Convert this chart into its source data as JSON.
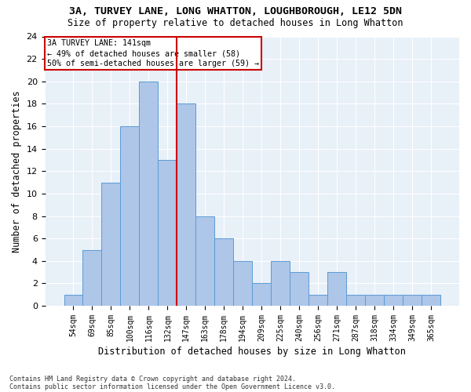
{
  "title1": "3A, TURVEY LANE, LONG WHATTON, LOUGHBOROUGH, LE12 5DN",
  "title2": "Size of property relative to detached houses in Long Whatton",
  "xlabel": "Distribution of detached houses by size in Long Whatton",
  "ylabel": "Number of detached properties",
  "footnote1": "Contains HM Land Registry data © Crown copyright and database right 2024.",
  "footnote2": "Contains public sector information licensed under the Open Government Licence v3.0.",
  "bin_labels": [
    "54sqm",
    "69sqm",
    "85sqm",
    "100sqm",
    "116sqm",
    "132sqm",
    "147sqm",
    "163sqm",
    "178sqm",
    "194sqm",
    "209sqm",
    "225sqm",
    "240sqm",
    "256sqm",
    "271sqm",
    "287sqm",
    "318sqm",
    "334sqm",
    "349sqm",
    "365sqm"
  ],
  "values": [
    1,
    5,
    11,
    16,
    20,
    13,
    18,
    8,
    6,
    4,
    2,
    4,
    3,
    1,
    3,
    1,
    1,
    1,
    1,
    1
  ],
  "bar_color": "#aec6e8",
  "bar_edge_color": "#5b9bd5",
  "background_color": "#e8f0f8",
  "grid_color": "#ffffff",
  "vline_color": "#cc0000",
  "annotation_text": "3A TURVEY LANE: 141sqm\n← 49% of detached houses are smaller (58)\n50% of semi-detached houses are larger (59) →",
  "annotation_box_color": "#cc0000",
  "ylim": [
    0,
    24
  ],
  "yticks": [
    0,
    2,
    4,
    6,
    8,
    10,
    12,
    14,
    16,
    18,
    20,
    22,
    24
  ],
  "figsize": [
    6.0,
    5.0
  ],
  "dpi": 100
}
